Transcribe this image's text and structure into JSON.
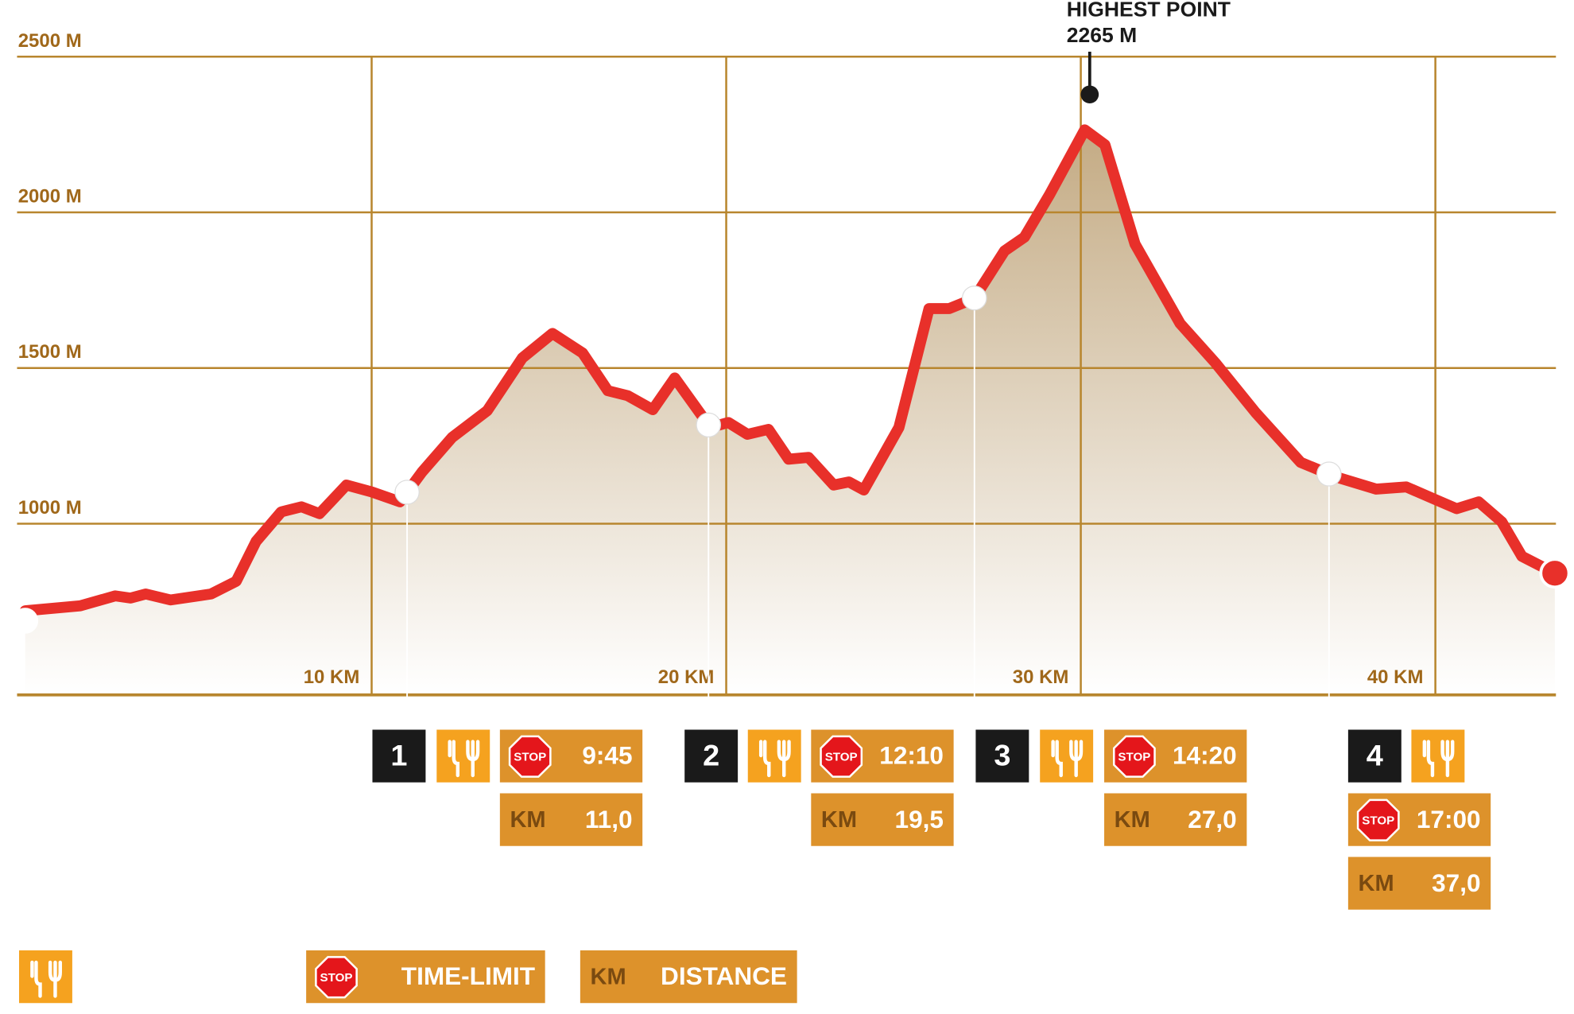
{
  "chart_data": {
    "type": "area",
    "x": [
      0.23,
      1.78,
      2.77,
      3.2,
      3.63,
      4.33,
      5.47,
      6.18,
      6.74,
      7.45,
      8.02,
      8.53,
      9.29,
      10.0,
      10.8,
      11.42,
      12.27,
      13.26,
      14.25,
      15.1,
      15.95,
      16.66,
      17.22,
      17.93,
      18.55,
      19.55,
      20.06,
      20.6,
      21.19,
      21.76,
      22.32,
      23.03,
      23.46,
      23.88,
      24.87,
      25.72,
      26.29,
      26.99,
      27.85,
      28.41,
      29.12,
      30.11,
      30.68,
      31.53,
      32.8,
      33.8,
      34.93,
      36.2,
      37.2,
      38.33,
      39.18,
      40.03,
      40.6,
      41.22,
      41.87,
      42.44,
      43.37
    ],
    "values": [
      720,
      736,
      768,
      761,
      774,
      755,
      774,
      815,
      943,
      1038,
      1054,
      1032,
      1124,
      1102,
      1070,
      1166,
      1277,
      1363,
      1532,
      1611,
      1548,
      1427,
      1411,
      1366,
      1468,
      1309,
      1325,
      1287,
      1303,
      1207,
      1213,
      1124,
      1134,
      1108,
      1309,
      1691,
      1691,
      1723,
      1876,
      1920,
      2057,
      2265,
      2217,
      1898,
      1643,
      1516,
      1357,
      1197,
      1150,
      1111,
      1118,
      1076,
      1048,
      1070,
      1006,
      895,
      841
    ],
    "color": "#e8302a",
    "fill": "#c4ab84",
    "xlim": [
      0,
      43.4
    ],
    "ylim": [
      450,
      2500
    ],
    "xticks": [
      {
        "value": 10,
        "label": "10 KM"
      },
      {
        "value": 20,
        "label": "20 KM"
      },
      {
        "value": 30,
        "label": "30 KM"
      },
      {
        "value": 40,
        "label": "40 KM"
      }
    ],
    "yticks": [
      {
        "value": 1000,
        "label": "1000 M"
      },
      {
        "value": 1500,
        "label": "1500 M"
      },
      {
        "value": 2000,
        "label": "2000 M"
      },
      {
        "value": 2500,
        "label": "2500 M"
      }
    ],
    "grid": true,
    "annotation": {
      "title": "HIGHEST POINT",
      "value": 2265,
      "label": "2265 M"
    }
  },
  "checkpoints": [
    {
      "number": "1",
      "time": "9:45",
      "km": {
        "value": 11,
        "label": "11,0"
      }
    },
    {
      "number": "2",
      "time": "12:10",
      "km": {
        "value": 19.5,
        "label": "19,5"
      }
    },
    {
      "number": "3",
      "time": "14:20",
      "km": {
        "value": 27,
        "label": "27,0"
      }
    },
    {
      "number": "4",
      "time": "17:00",
      "km": {
        "value": 37,
        "label": "37,0"
      }
    }
  ],
  "legend": {
    "stop": "STOP",
    "km": "KM",
    "time_limit": "TIME-LIMIT",
    "distance": "DISTANCE"
  }
}
